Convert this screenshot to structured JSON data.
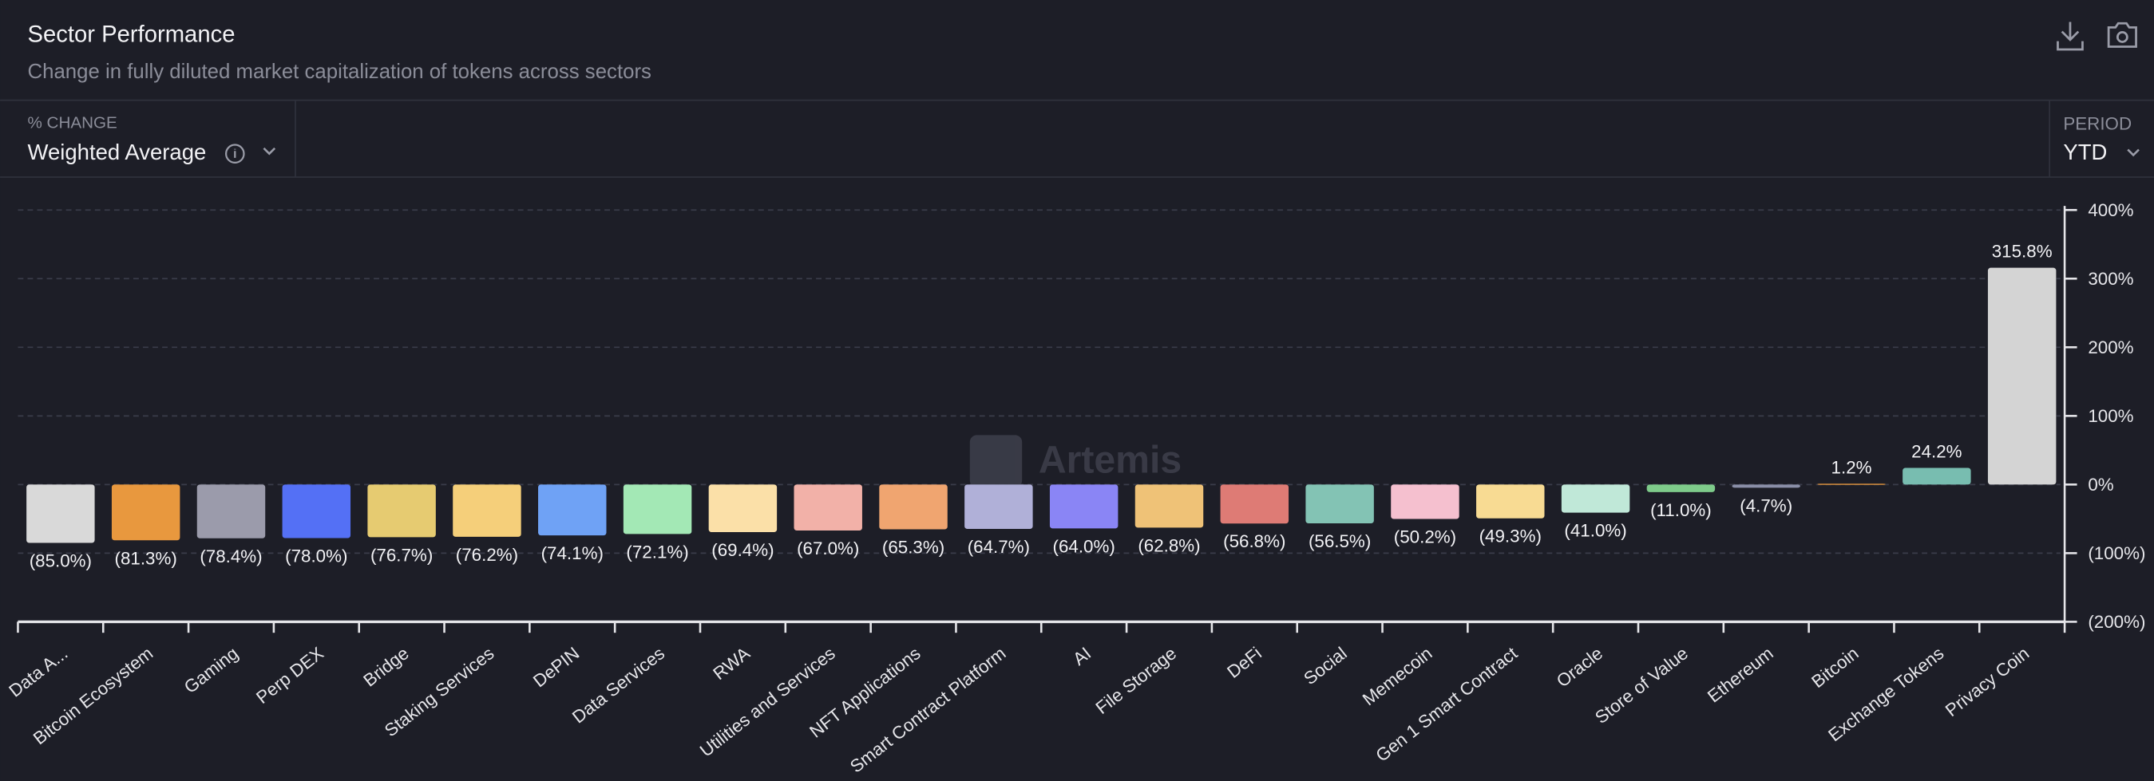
{
  "header": {
    "title": "Sector Performance",
    "subtitle": "Change in fully diluted market capitalization of tokens across sectors"
  },
  "controls": {
    "change_label": "% CHANGE",
    "change_value": "Weighted Average",
    "period_label": "PERIOD",
    "period_value": "YTD"
  },
  "chart_data": {
    "type": "bar",
    "watermark": "Artemis",
    "categories": [
      "Data A...",
      "Bitcoin Ecosystem",
      "Gaming",
      "Perp DEX",
      "Bridge",
      "Staking Services",
      "DePIN",
      "Data Services",
      "RWA",
      "Utilities and Services",
      "NFT Applications",
      "Smart Contract Platform",
      "AI",
      "File Storage",
      "DeFi",
      "Social",
      "Memecoin",
      "Gen 1 Smart Contract",
      "Oracle",
      "Store of Value",
      "Ethereum",
      "Bitcoin",
      "Exchange Tokens",
      "Privacy Coin"
    ],
    "values": [
      -85.0,
      -81.3,
      -78.4,
      -78.0,
      -76.7,
      -76.2,
      -74.1,
      -72.1,
      -69.4,
      -67.0,
      -65.3,
      -64.7,
      -64.0,
      -62.8,
      -56.8,
      -56.5,
      -50.2,
      -49.3,
      -41.0,
      -11.0,
      -4.7,
      1.2,
      24.2,
      315.8
    ],
    "value_labels": [
      "(85.0%)",
      "(81.3%)",
      "(78.4%)",
      "(78.0%)",
      "(76.7%)",
      "(76.2%)",
      "(74.1%)",
      "(72.1%)",
      "(69.4%)",
      "(67.0%)",
      "(65.3%)",
      "(64.7%)",
      "(64.0%)",
      "(62.8%)",
      "(56.8%)",
      "(56.5%)",
      "(50.2%)",
      "(49.3%)",
      "(41.0%)",
      "(11.0%)",
      "(4.7%)",
      "1.2%",
      "24.2%",
      "315.8%"
    ],
    "colors": [
      "#d9d9d9",
      "#e8983e",
      "#9b9bab",
      "#5470f5",
      "#e6cb71",
      "#f5cf7a",
      "#6fa2f5",
      "#a3e8b5",
      "#fbe0a8",
      "#f2b1a8",
      "#f0a570",
      "#b0b0d8",
      "#8a85f5",
      "#efc277",
      "#de7b75",
      "#83c3b4",
      "#f5c0cf",
      "#f8db93",
      "#c0e8d8",
      "#7ecb8a",
      "#8a8fa8",
      "#e8983e",
      "#78bdb0",
      "#d4d4d4"
    ],
    "ylim": [
      -200,
      400
    ],
    "yticks": [
      {
        "value": -200,
        "label": "(200%)"
      },
      {
        "value": -100,
        "label": "(100%)"
      },
      {
        "value": 0,
        "label": "0%"
      },
      {
        "value": 100,
        "label": "100%"
      },
      {
        "value": 200,
        "label": "200%"
      },
      {
        "value": 300,
        "label": "300%"
      },
      {
        "value": 400,
        "label": "400%"
      }
    ],
    "grid": true
  }
}
